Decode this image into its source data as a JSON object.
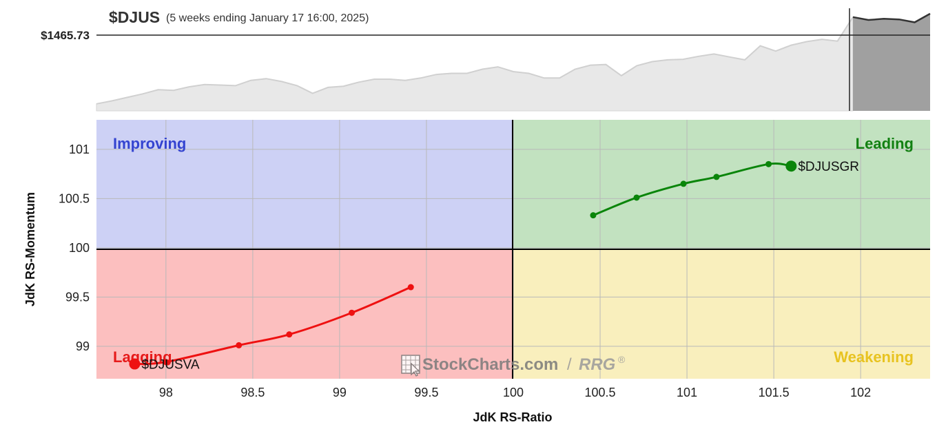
{
  "header": {
    "symbol": "$DJUS",
    "period": "(5 weeks ending January 17 16:00, 2025)",
    "price_label": "$1465.73"
  },
  "watermark": {
    "brand": "StockCharts.com",
    "separator": "/",
    "product": "RRG",
    "mark": "®"
  },
  "colors": {
    "improving": "#cdd1f5",
    "leading": "#c2e2c0",
    "lagging": "#fcbfbf",
    "weakening": "#f9efbd",
    "improving_label": "#3444d0",
    "leading_label": "#128012",
    "lagging_label": "#e61a1a",
    "weakening_label": "#e8c320",
    "growth_series": "#0a850a",
    "value_series": "#ee1111",
    "price_area": "#e8e8e8",
    "price_area_highlight": "#a0a0a0"
  },
  "chart_data": [
    {
      "type": "area",
      "title": "$DJUS",
      "subtitle": "(5 weeks ending January 17 16:00, 2025)",
      "current_value": 1465.73,
      "ylim": [
        1300,
        1475
      ],
      "values": [
        1312,
        1317,
        1323,
        1329,
        1336,
        1335,
        1341,
        1345,
        1344,
        1343,
        1352,
        1355,
        1350,
        1343,
        1330,
        1340,
        1342,
        1349,
        1354,
        1354,
        1352,
        1356,
        1362,
        1364,
        1364,
        1371,
        1375,
        1367,
        1364,
        1356,
        1356,
        1371,
        1378,
        1379,
        1360,
        1377,
        1384,
        1387,
        1388,
        1393,
        1397,
        1392,
        1387,
        1411,
        1402,
        1412,
        1418,
        1422,
        1419,
        1460,
        1455,
        1457,
        1456,
        1451,
        1465.73
      ],
      "highlight_from_index": 49
    },
    {
      "type": "scatter",
      "xlabel": "JdK RS-Ratio",
      "ylabel": "JdK RS-Momentum",
      "xlim": [
        97.6,
        102.4
      ],
      "ylim": [
        98.67,
        101.3
      ],
      "xticks": [
        "98",
        "98.5",
        "99",
        "99.5",
        "100",
        "100.5",
        "101",
        "101.5",
        "102"
      ],
      "yticks": [
        "99",
        "99.5",
        "100",
        "100.5",
        "101"
      ],
      "center": [
        100,
        100
      ],
      "quadrants": {
        "improving": "Improving",
        "leading": "Leading",
        "lagging": "Lagging",
        "weakening": "Weakening"
      },
      "series": [
        {
          "name": "$DJUSGR",
          "x": [
            100.46,
            100.71,
            100.98,
            101.17,
            101.47,
            101.6
          ],
          "y": [
            100.33,
            100.51,
            100.65,
            100.72,
            100.85,
            100.83
          ]
        },
        {
          "name": "$DJUSVA",
          "x": [
            99.41,
            99.07,
            98.71,
            98.42,
            98.0,
            97.82
          ],
          "y": [
            99.6,
            99.34,
            99.12,
            99.01,
            98.84,
            98.82
          ]
        }
      ]
    }
  ]
}
